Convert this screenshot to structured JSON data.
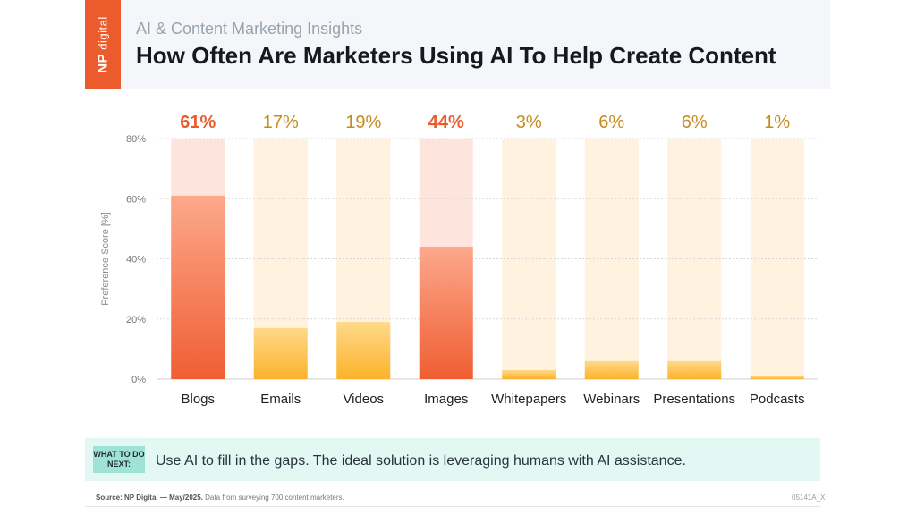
{
  "header": {
    "logo_np": "NP",
    "logo_word": "digital",
    "subtitle": "AI & Content Marketing Insights",
    "title": "How Often Are Marketers Using AI To Help Create Content"
  },
  "chart_data": {
    "type": "bar",
    "title": "How Often Are Marketers Using AI To Help Create Content",
    "ylabel": "Preference Score [%]",
    "xlabel": "",
    "ylim": [
      0,
      80
    ],
    "yticks": [
      {
        "value": 0,
        "label": "0%"
      },
      {
        "value": 20,
        "label": "20%"
      },
      {
        "value": 40,
        "label": "40%"
      },
      {
        "value": 60,
        "label": "60%"
      },
      {
        "value": 80,
        "label": "80%"
      }
    ],
    "grid": true,
    "categories": [
      "Blogs",
      "Emails",
      "Videos",
      "Images",
      "Whitepapers",
      "Webinars",
      "Presentations",
      "Podcasts"
    ],
    "values": [
      61,
      17,
      19,
      44,
      3,
      6,
      6,
      1
    ],
    "value_labels": [
      "61%",
      "17%",
      "19%",
      "44%",
      "3%",
      "6%",
      "6%",
      "1%"
    ],
    "highlight": [
      true,
      false,
      false,
      true,
      false,
      false,
      false,
      false
    ],
    "colors": {
      "highlight_top": "#fca88c",
      "highlight_bottom": "#f05e32",
      "highlight_track": "#fde5de",
      "highlight_label": "#ec5b2b",
      "normal_top": "#ffd98a",
      "normal_bottom": "#fcb32a",
      "normal_track": "#fff2df",
      "normal_label": "#c78a1e"
    }
  },
  "next": {
    "badge": "WHAT TO DO NEXT:",
    "text": "Use AI to fill in the gaps. The ideal solution is leveraging humans with AI assistance."
  },
  "footer": {
    "source_label": "Source: NP Digital — May/2025.",
    "source_text": "Data from surveying 700 content marketers.",
    "code": "05141A_X"
  }
}
